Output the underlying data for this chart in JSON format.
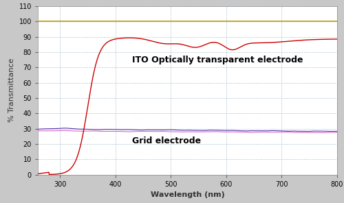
{
  "title": "",
  "xlabel": "Wavelength (nm)",
  "ylabel": "% Transmittance",
  "xlim": [
    260,
    800
  ],
  "ylim": [
    0,
    110
  ],
  "yticks": [
    0,
    10,
    20,
    30,
    40,
    50,
    60,
    70,
    80,
    90,
    100,
    110
  ],
  "xticks": [
    300,
    400,
    500,
    600,
    700,
    800
  ],
  "background_color": "#c8c8c8",
  "plot_bg_color": "#ffffff",
  "grid_color": "#a0b8c8",
  "ito_color": "#cc0000",
  "grid_electrode_color": "#5533aa",
  "grid_electrode_color2": "#cc44bb",
  "reference_color": "#c8a830",
  "ito_label": "ITO Optically transparent electrode",
  "grid_label": "Grid electrode",
  "label_fontsize": 9,
  "axis_label_fontsize": 8,
  "tick_fontsize": 7
}
